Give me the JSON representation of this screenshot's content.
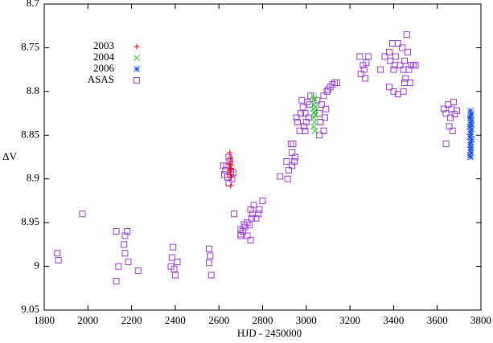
{
  "chart_data": {
    "type": "scatter",
    "xlabel": "HJD - 2450000",
    "ylabel": "ΔV",
    "xlim": [
      1800,
      3800
    ],
    "xticks": [
      1800,
      2000,
      2200,
      2400,
      2600,
      2800,
      3000,
      3200,
      3400,
      3600,
      3800
    ],
    "ylim": [
      9.05,
      8.7
    ],
    "yticks": [
      8.7,
      8.75,
      8.8,
      8.85,
      8.9,
      8.95,
      9,
      9.05
    ],
    "legend": "top-left",
    "series": [
      {
        "name": "2003",
        "color": "#ff0000",
        "marker": "+",
        "x": [
          2650,
          2652,
          2655,
          2650,
          2653,
          2656,
          2650,
          2655,
          2652,
          2656,
          2654
        ],
        "values": [
          8.87,
          8.875,
          8.88,
          8.883,
          8.885,
          8.888,
          8.89,
          8.892,
          8.895,
          8.898,
          8.908
        ]
      },
      {
        "name": "2004",
        "color": "#33cc33",
        "marker": "x",
        "x": [
          3032,
          3038,
          3035,
          3040,
          3033,
          3037,
          3041,
          3035,
          3038,
          3034,
          3040,
          3036,
          3042
        ],
        "values": [
          8.805,
          8.81,
          8.815,
          8.818,
          8.82,
          8.824,
          8.827,
          8.83,
          8.835,
          8.84,
          8.845,
          8.808,
          8.822
        ]
      },
      {
        "name": "2006",
        "color": "#2255ee",
        "marker": "*",
        "x": [
          3752,
          3755,
          3750,
          3757,
          3753,
          3749,
          3756,
          3752,
          3754,
          3750,
          3757,
          3753,
          3751,
          3755,
          3752,
          3754,
          3750,
          3756,
          3753,
          3752
        ],
        "values": [
          8.822,
          8.826,
          8.83,
          8.833,
          8.836,
          8.84,
          8.843,
          8.846,
          8.849,
          8.852,
          8.855,
          8.858,
          8.861,
          8.864,
          8.867,
          8.87,
          8.873,
          8.838,
          8.828,
          8.875
        ]
      },
      {
        "name": "ASAS",
        "color": "#a040e0",
        "marker": "square",
        "x": [
          1860,
          1865,
          1975,
          2130,
          2140,
          2130,
          2170,
          2165,
          2180,
          2170,
          2185,
          2230,
          2380,
          2390,
          2385,
          2395,
          2400,
          2410,
          2555,
          2560,
          2555,
          2565,
          2620,
          2625,
          2630,
          2640,
          2635,
          2645,
          2660,
          2650,
          2655,
          2665,
          2645,
          2670,
          2700,
          2710,
          2720,
          2715,
          2730,
          2700,
          2740,
          2745,
          2755,
          2750,
          2760,
          2770,
          2780,
          2785,
          2800,
          2745,
          2730,
          2700,
          2880,
          2910,
          2920,
          2915,
          2930,
          2935,
          2940,
          2950,
          2935,
          2945,
          2955,
          2960,
          2975,
          2985,
          2970,
          2990,
          3000,
          2995,
          3005,
          3010,
          3015,
          3020,
          2995,
          2980,
          3050,
          3060,
          3065,
          3070,
          3080,
          3085,
          3090,
          3095,
          3100,
          3110,
          3120,
          3130,
          3140,
          3080,
          3060,
          3245,
          3260,
          3265,
          3275,
          3285,
          3270,
          3250,
          3340,
          3360,
          3380,
          3385,
          3395,
          3400,
          3405,
          3410,
          3420,
          3430,
          3440,
          3445,
          3450,
          3455,
          3460,
          3465,
          3470,
          3475,
          3480,
          3490,
          3500,
          3450,
          3380,
          3400,
          3420,
          3445,
          3630,
          3640,
          3650,
          3660,
          3665,
          3675,
          3680,
          3655,
          3670,
          3640,
          3690
        ],
        "values": [
          8.985,
          8.993,
          8.94,
          8.96,
          9.0,
          9.017,
          8.965,
          8.975,
          8.96,
          8.985,
          8.995,
          9.005,
          9.0,
          8.978,
          8.99,
          9.003,
          9.01,
          8.995,
          8.98,
          8.988,
          8.996,
          9.01,
          8.885,
          8.895,
          8.89,
          8.898,
          8.885,
          8.905,
          8.9,
          8.88,
          8.892,
          8.893,
          8.875,
          8.94,
          8.965,
          8.96,
          8.955,
          8.952,
          8.95,
          8.958,
          8.953,
          8.935,
          8.94,
          8.945,
          8.93,
          8.945,
          8.94,
          8.935,
          8.925,
          8.97,
          8.965,
          8.963,
          8.897,
          8.88,
          8.89,
          8.9,
          8.86,
          8.87,
          8.86,
          8.875,
          8.885,
          8.88,
          8.83,
          8.835,
          8.825,
          8.818,
          8.845,
          8.84,
          8.835,
          8.825,
          8.812,
          8.83,
          8.815,
          8.805,
          8.845,
          8.81,
          8.81,
          8.825,
          8.835,
          8.815,
          8.805,
          8.83,
          8.82,
          8.8,
          8.798,
          8.795,
          8.792,
          8.79,
          8.79,
          8.845,
          8.85,
          8.76,
          8.77,
          8.775,
          8.767,
          8.76,
          8.785,
          8.78,
          8.775,
          8.76,
          8.755,
          8.765,
          8.745,
          8.775,
          8.77,
          8.76,
          8.745,
          8.77,
          8.75,
          8.775,
          8.765,
          8.785,
          8.735,
          8.755,
          8.775,
          8.79,
          8.77,
          8.77,
          8.77,
          8.79,
          8.795,
          8.8,
          8.803,
          8.8,
          8.82,
          8.825,
          8.815,
          8.83,
          8.82,
          8.812,
          8.826,
          8.84,
          8.845,
          8.86,
          8.822
        ]
      }
    ]
  }
}
